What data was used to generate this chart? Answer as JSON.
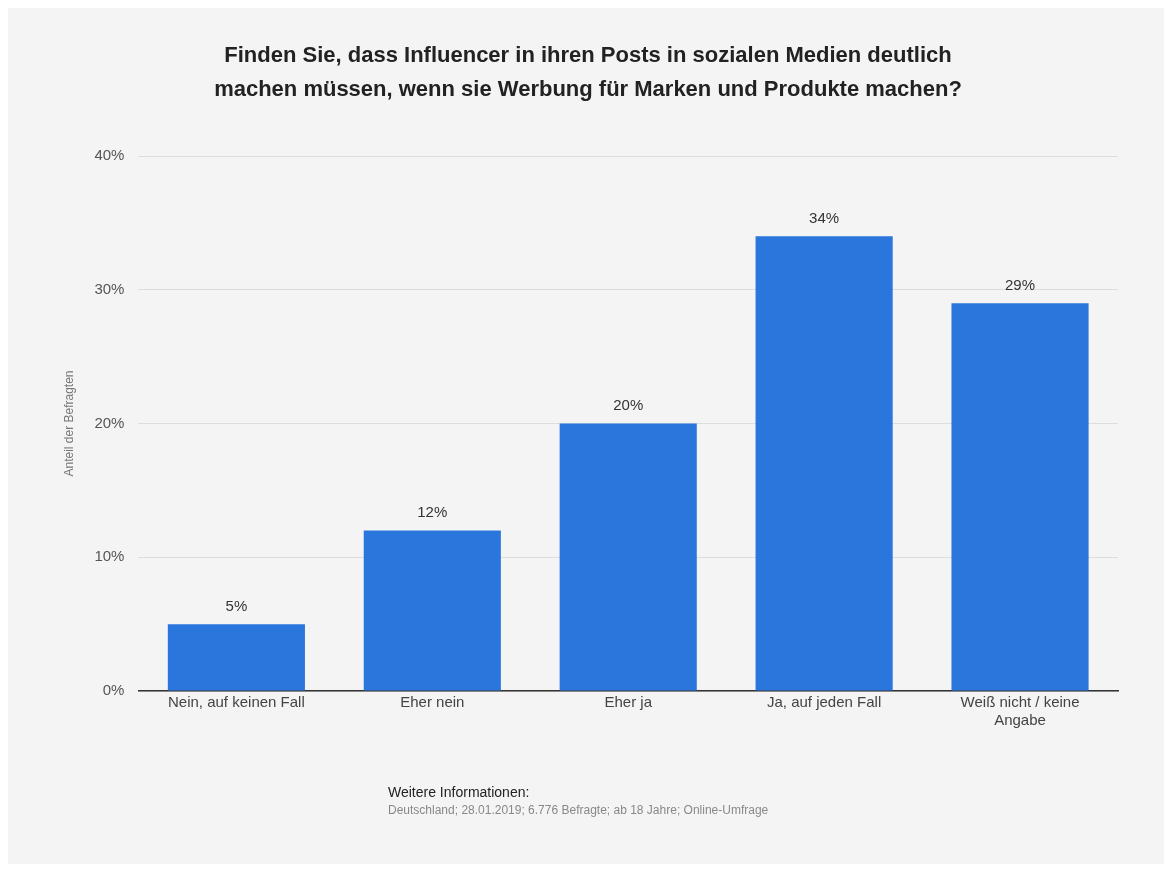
{
  "chart_data": {
    "type": "bar",
    "title": "Finden Sie, dass Influencer in ihren Posts in sozialen Medien deutlich machen müssen, wenn sie Werbung für Marken und Produkte machen?",
    "ylabel": "Anteil der Befragten",
    "categories": [
      "Nein, auf keinen Fall",
      "Eher nein",
      "Eher ja",
      "Ja, auf jeden Fall",
      "Weiß nicht / keine Angabe"
    ],
    "values": [
      5,
      12,
      20,
      34,
      29
    ],
    "color": "#2a76dd",
    "ylim": [
      0,
      40
    ],
    "yticks": [
      {
        "value": 0,
        "label": "0%"
      },
      {
        "value": 10,
        "label": "10%"
      },
      {
        "value": 20,
        "label": "20%"
      },
      {
        "value": 30,
        "label": "30%"
      },
      {
        "value": 40,
        "label": "40%"
      }
    ],
    "grid": "y",
    "legend": false,
    "value_labels": [
      "5%",
      "12%",
      "20%",
      "34%",
      "29%"
    ],
    "annotations": [
      "Weitere Informationen:",
      "Deutschland; 28.01.2019; 6.776 Befragte; ab 18 Jahre; Online-Umfrage"
    ]
  }
}
